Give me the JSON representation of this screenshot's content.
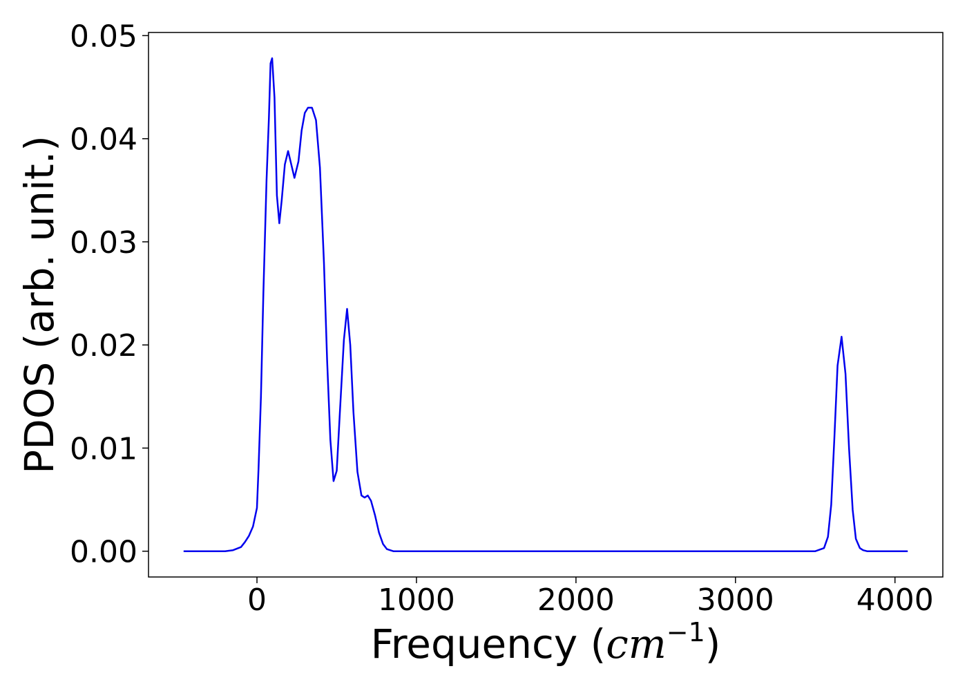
{
  "chart_data": {
    "type": "line",
    "title": "",
    "xlabel": "Frequency",
    "xlabel_unit": {
      "open": " (",
      "base": "cm",
      "exp": "−1",
      "close": ")"
    },
    "ylabel": "PDOS (arb. unit.)",
    "xlim": [
      -680,
      4300
    ],
    "ylim": [
      -0.0025,
      0.0503
    ],
    "xticks": [
      0,
      1000,
      2000,
      3000,
      4000
    ],
    "xtick_labels": [
      "0",
      "1000",
      "2000",
      "3000",
      "4000"
    ],
    "yticks": [
      0.0,
      0.01,
      0.02,
      0.03,
      0.04,
      0.05
    ],
    "ytick_labels": [
      "0.00",
      "0.01",
      "0.02",
      "0.03",
      "0.04",
      "0.05"
    ],
    "grid": false,
    "legend": "none",
    "series": [
      {
        "color": "#0000ee",
        "x": [
          -460,
          -200,
          -150,
          -100,
          -75,
          -50,
          -25,
          0,
          10,
          25,
          40,
          60,
          75,
          85,
          95,
          110,
          125,
          140,
          155,
          175,
          195,
          215,
          235,
          260,
          280,
          300,
          320,
          345,
          370,
          395,
          420,
          440,
          460,
          480,
          500,
          520,
          545,
          565,
          585,
          605,
          630,
          655,
          675,
          695,
          715,
          740,
          765,
          790,
          815,
          835,
          855,
          880,
          905,
          930,
          1000,
          3500,
          3555,
          3580,
          3600,
          3620,
          3640,
          3665,
          3690,
          3712,
          3735,
          3755,
          3780,
          3800,
          3825,
          3850,
          4080
        ],
        "y": [
          0,
          0,
          0.0001,
          0.0004,
          0.0009,
          0.0015,
          0.0024,
          0.0042,
          0.008,
          0.015,
          0.025,
          0.036,
          0.042,
          0.0473,
          0.0478,
          0.044,
          0.0345,
          0.0318,
          0.034,
          0.0375,
          0.0388,
          0.0375,
          0.0362,
          0.0378,
          0.0408,
          0.0425,
          0.043,
          0.043,
          0.0418,
          0.0372,
          0.028,
          0.0185,
          0.0108,
          0.0068,
          0.0078,
          0.0135,
          0.0205,
          0.0235,
          0.02,
          0.0135,
          0.0077,
          0.0054,
          0.0052,
          0.0054,
          0.0049,
          0.0035,
          0.0018,
          0.0007,
          0.0002,
          0.0001,
          0,
          0,
          0,
          0,
          0,
          0,
          0.0003,
          0.0014,
          0.0045,
          0.011,
          0.018,
          0.0208,
          0.0172,
          0.01,
          0.004,
          0.0012,
          0.0003,
          0.0001,
          0,
          0,
          0
        ]
      }
    ]
  }
}
